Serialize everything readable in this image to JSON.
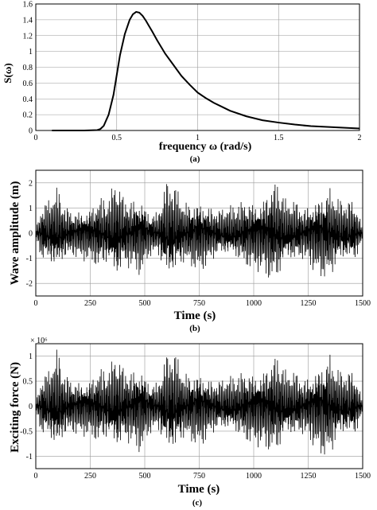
{
  "chart_data": [
    {
      "type": "line",
      "title": "",
      "caption": "(a)",
      "xlabel": "frequency  ω (rad/s)",
      "ylabel": "S(ω)",
      "xlim": [
        0,
        2
      ],
      "ylim": [
        0,
        1.6
      ],
      "xticks": [
        "0",
        "0.5",
        "1",
        "1.5",
        "2"
      ],
      "yticks": [
        "0",
        "0.2",
        "0.4",
        "0.6",
        "0.8",
        "1",
        "1.2",
        "1.4",
        "1.6"
      ],
      "grid": true,
      "series": [
        {
          "x": [
            0.1,
            0.3,
            0.38,
            0.4,
            0.42,
            0.45,
            0.48,
            0.5,
            0.52,
            0.55,
            0.58,
            0.6,
            0.62,
            0.64,
            0.66,
            0.68,
            0.7,
            0.72,
            0.75,
            0.8,
            0.85,
            0.9,
            0.95,
            1.0,
            1.05,
            1.1,
            1.15,
            1.2,
            1.3,
            1.4,
            1.5,
            1.6,
            1.7,
            1.8,
            1.9,
            2.0
          ],
          "y": [
            0,
            0,
            0.005,
            0.02,
            0.06,
            0.2,
            0.45,
            0.7,
            0.95,
            1.22,
            1.4,
            1.47,
            1.5,
            1.49,
            1.45,
            1.39,
            1.32,
            1.25,
            1.14,
            0.97,
            0.83,
            0.69,
            0.58,
            0.48,
            0.41,
            0.35,
            0.3,
            0.25,
            0.18,
            0.13,
            0.1,
            0.075,
            0.055,
            0.045,
            0.035,
            0.025
          ]
        }
      ]
    },
    {
      "type": "line",
      "title": "",
      "caption": "(b)",
      "xlabel": "Time (s)",
      "ylabel": "Wave amplitude (m)",
      "xlim": [
        0,
        1500
      ],
      "ylim": [
        -2.5,
        2.5
      ],
      "xticks": [
        "0",
        "250",
        "500",
        "750",
        "1000",
        "1250",
        "1500"
      ],
      "yticks": [
        "-2",
        "-1",
        "0",
        "1",
        "2"
      ],
      "grid": true,
      "series": [
        {
          "x": [
            0,
            30,
            60,
            100,
            130,
            170,
            210,
            250,
            290,
            330,
            370,
            400,
            440,
            480,
            520,
            560,
            600,
            640,
            680,
            720,
            760,
            800,
            840,
            880,
            920,
            960,
            1000,
            1040,
            1080,
            1110,
            1150,
            1190,
            1230,
            1270,
            1310,
            1350,
            1380,
            1420,
            1460,
            1500
          ],
          "y": [
            0.2,
            -1.3,
            1.4,
            -1.9,
            1.2,
            -1.0,
            1.1,
            -1.2,
            1.6,
            -1.4,
            2.3,
            -1.6,
            1.5,
            -1.8,
            1.0,
            -0.9,
            2.2,
            -2.0,
            1.3,
            -1.5,
            1.6,
            -1.2,
            1.0,
            -1.1,
            1.2,
            -1.5,
            1.5,
            -1.6,
            2.2,
            -2.2,
            1.3,
            -1.4,
            1.1,
            -1.5,
            1.9,
            -2.0,
            1.5,
            -1.3,
            1.4,
            0.3
          ]
        }
      ]
    },
    {
      "type": "line",
      "title": "",
      "caption": "(c)",
      "xlabel": "Time (s)",
      "ylabel": "Exciting force (N)",
      "yscale_label": "× 10⁶",
      "xlim": [
        0,
        1500
      ],
      "ylim": [
        -1.25,
        1.25
      ],
      "xticks": [
        "0",
        "250",
        "500",
        "750",
        "1000",
        "1250",
        "1500"
      ],
      "yticks": [
        "-1",
        "-0.5",
        "0",
        "0.5",
        "1"
      ],
      "grid": true,
      "series": [
        {
          "x": [
            0,
            30,
            60,
            100,
            130,
            170,
            210,
            250,
            290,
            330,
            370,
            400,
            440,
            480,
            520,
            560,
            600,
            640,
            680,
            720,
            760,
            800,
            840,
            880,
            920,
            960,
            1000,
            1040,
            1080,
            1110,
            1150,
            1190,
            1230,
            1270,
            1310,
            1350,
            1380,
            1420,
            1460,
            1500
          ],
          "y": [
            0.1,
            -0.7,
            0.75,
            -1.2,
            0.7,
            -0.6,
            0.6,
            -0.65,
            0.85,
            -0.75,
            1.1,
            -0.85,
            0.8,
            -1.0,
            0.6,
            -0.5,
            1.1,
            -1.15,
            0.7,
            -0.8,
            0.85,
            -0.6,
            0.55,
            -0.6,
            0.65,
            -0.8,
            0.8,
            -0.85,
            1.05,
            -1.1,
            0.7,
            -0.75,
            0.6,
            -0.8,
            1.05,
            -1.15,
            0.8,
            -0.7,
            0.75,
            0.15
          ]
        }
      ]
    }
  ]
}
